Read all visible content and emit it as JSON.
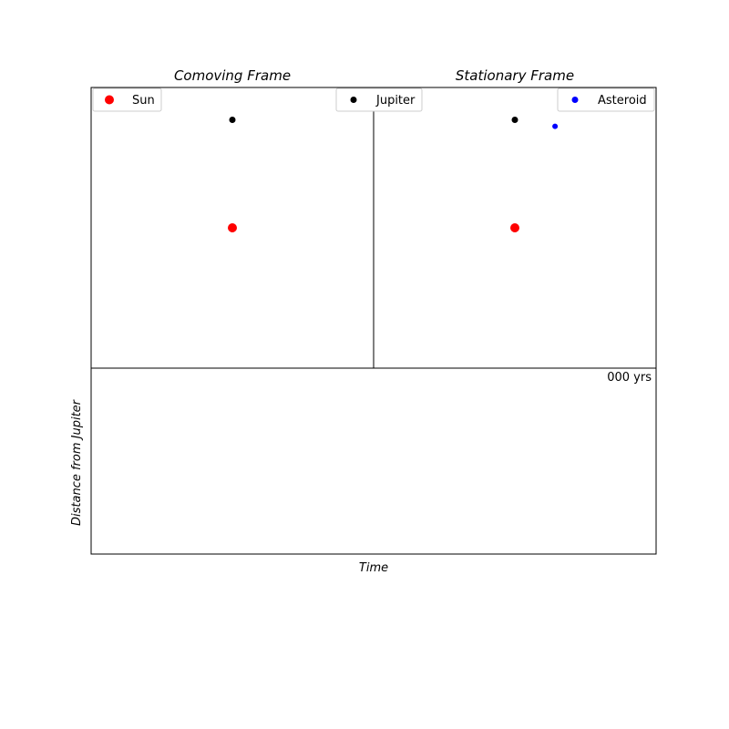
{
  "chart_data": [
    {
      "type": "scatter",
      "title": "Comoving Frame",
      "xlim": [
        -1.3,
        1.3
      ],
      "ylim": [
        -1.3,
        1.3
      ],
      "grid": false,
      "legend": {
        "placement": "top-left",
        "entries": [
          "Sun"
        ]
      },
      "series": [
        {
          "name": "Sun",
          "color": "#ff0000",
          "points": [
            [
              0,
              0
            ]
          ]
        },
        {
          "name": "Jupiter",
          "color": "#000000",
          "points": [
            [
              0,
              1.0
            ]
          ]
        }
      ]
    },
    {
      "type": "scatter",
      "title": "Stationary Frame",
      "xlim": [
        -1.3,
        1.3
      ],
      "ylim": [
        -1.3,
        1.3
      ],
      "grid": false,
      "legend": {
        "placement": "top-right",
        "entries": [
          "Asteroid"
        ]
      },
      "series": [
        {
          "name": "Sun",
          "color": "#ff0000",
          "points": [
            [
              0,
              0
            ]
          ]
        },
        {
          "name": "Jupiter",
          "color": "#000000",
          "points": [
            [
              0,
              1.0
            ]
          ]
        },
        {
          "name": "Asteroid",
          "color": "#0000ff",
          "points": [
            [
              0.37,
              0.94
            ]
          ]
        }
      ]
    },
    {
      "type": "line",
      "xlabel": "Time",
      "ylabel": "Distance from Jupiter",
      "annotation": "000 yrs",
      "series": []
    }
  ],
  "shared_legend": {
    "placement": "upper-center",
    "entries": [
      "Jupiter"
    ]
  }
}
